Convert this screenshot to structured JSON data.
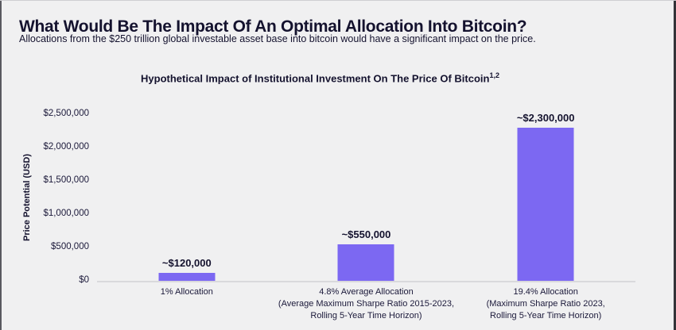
{
  "page": {
    "title": "What Would Be The Impact Of An Optimal Allocation Into Bitcoin?",
    "subtitle": "Allocations from the $250 trillion global investable asset base into bitcoin would have a significant impact on the price."
  },
  "chart": {
    "title": "Hypothetical Impact of Institutional Investment On The Price Of Bitcoin",
    "title_superscript": "1,2",
    "y_axis_title": "Price Potential (USD)",
    "y_ticks": [
      "$2,500,000",
      "$2,000,000",
      "$1,500,000",
      "$1,000,000",
      "$500,000",
      "$0"
    ]
  },
  "colors": {
    "bar": "#7c68f2",
    "background": "#f0f0f1",
    "text": "#14122e",
    "baseline": "#d9d9dc"
  },
  "chart_data": {
    "type": "bar",
    "title": "Hypothetical Impact of Institutional Investment On The Price Of Bitcoin (1,2)",
    "xlabel": "",
    "ylabel": "Price Potential (USD)",
    "ylim": [
      0,
      2500000
    ],
    "y_tick_interval": 500000,
    "grid": false,
    "categories": [
      "1% Allocation",
      "4.8% Average Allocation (Average Maximum Sharpe Ratio 2015-2023, Rolling 5-Year Time Horizon)",
      "19.4% Allocation (Maximum Sharpe Ratio 2023, Rolling 5-Year Time Horizon)"
    ],
    "category_lines": [
      [
        "1% Allocation"
      ],
      [
        "4.8% Average Allocation",
        "(Average Maximum Sharpe Ratio 2015-2023,",
        "Rolling 5-Year Time Horizon)"
      ],
      [
        "19.4% Allocation",
        "(Maximum Sharpe Ratio 2023,",
        "Rolling 5-Year Time Horizon)"
      ]
    ],
    "values": [
      120000,
      550000,
      2300000
    ],
    "value_labels": [
      "~$120,000",
      "~$550,000",
      "~$2,300,000"
    ]
  }
}
